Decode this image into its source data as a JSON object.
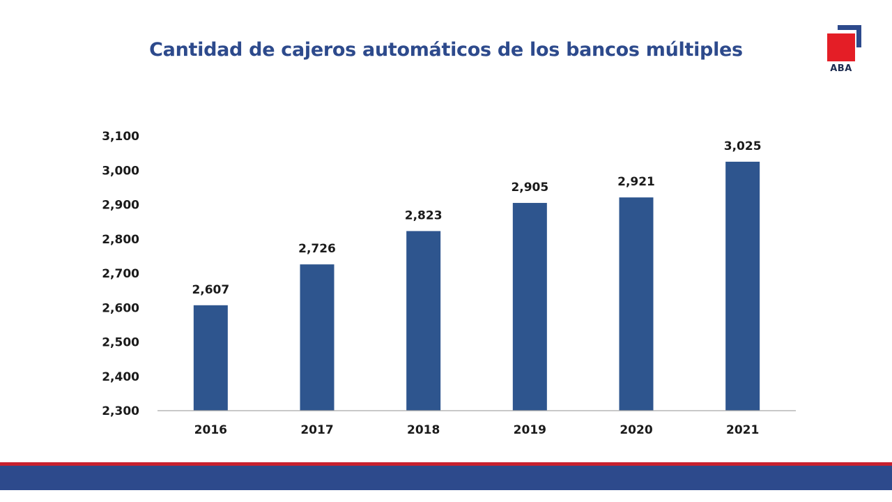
{
  "title": "Cantidad de cajeros automáticos de los bancos múltiples",
  "logo": {
    "text": "ABA",
    "square_color": "#e41e26",
    "bracket_color": "#2d4a8c"
  },
  "colors": {
    "bar": "#2e558e",
    "title": "#2d4a8c",
    "band_top": "#c8202e",
    "band_bottom": "#2d4a8c",
    "axis": "#a6a6a6"
  },
  "chart_data": {
    "type": "bar",
    "title": "Cantidad de cajeros automáticos de los bancos múltiples",
    "xlabel": "",
    "ylabel": "",
    "categories": [
      "2016",
      "2017",
      "2018",
      "2019",
      "2020",
      "2021"
    ],
    "values": [
      2607,
      2726,
      2823,
      2905,
      2921,
      3025
    ],
    "value_labels": [
      "2,607",
      "2,726",
      "2,823",
      "2,905",
      "2,921",
      "3,025"
    ],
    "ylim": [
      2300,
      3100
    ],
    "yticks": [
      2300,
      2400,
      2500,
      2600,
      2700,
      2800,
      2900,
      3000,
      3100
    ],
    "ytick_labels": [
      "2,300",
      "2,400",
      "2,500",
      "2,600",
      "2,700",
      "2,800",
      "2,900",
      "3,000",
      "3,100"
    ],
    "grid": false,
    "legend": "none"
  }
}
